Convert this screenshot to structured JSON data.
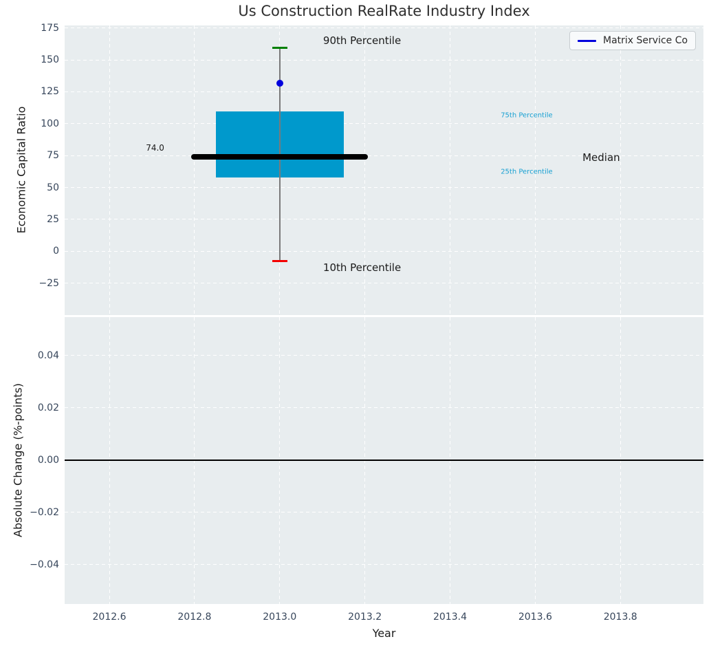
{
  "figure": {
    "title": "Us Construction RealRate Industry Index",
    "legend": {
      "label": "Matrix Service Co",
      "line_color": "#0101dd"
    }
  },
  "style": {
    "axes_background": "#e8edef",
    "grid_color": "#ffffff",
    "tick_color": "#36455a"
  },
  "chart_data": [
    {
      "type": "boxplot",
      "title": "Us Construction RealRate Industry Index",
      "ylabel": "Economic Capital Ratio",
      "xlim": [
        2012.495,
        2013.995
      ],
      "ylim": [
        -50,
        177
      ],
      "grid": true,
      "legend_position": "upper right",
      "x": 2013.0,
      "box_halfwidth": 0.15,
      "median_halfwidth": 0.2075,
      "cap_halfwidth": 0.018,
      "stats": {
        "p10": -7.6,
        "p25": 57.8,
        "median": 74.0,
        "p75": 109.6,
        "p90": 159.4
      },
      "company": {
        "name": "Matrix Service Co",
        "value": 131.6
      },
      "median_value_label": "74.0",
      "yticks": [
        {
          "v": 175,
          "label": "175"
        },
        {
          "v": 150,
          "label": "150"
        },
        {
          "v": 125,
          "label": "125"
        },
        {
          "v": 100,
          "label": "100"
        },
        {
          "v": 75,
          "label": "75"
        },
        {
          "v": 50,
          "label": "50"
        },
        {
          "v": 25,
          "label": "25"
        },
        {
          "v": 0,
          "label": "0"
        },
        {
          "v": -25,
          "label": "−25"
        }
      ],
      "annotations": [
        {
          "text": "90th Percentile",
          "x": 2013.102,
          "y": 165.0,
          "align": "left",
          "size": 15,
          "color": "#1a1a1a"
        },
        {
          "text": "10th Percentile",
          "x": 2013.102,
          "y": -12.8,
          "align": "left",
          "size": 15,
          "color": "#1a1a1a"
        },
        {
          "text": "75th Percentile",
          "x": 2013.519,
          "y": 106.1,
          "align": "left",
          "size": 10,
          "color": "#18a0d2"
        },
        {
          "text": "25th Percentile",
          "x": 2013.519,
          "y": 61.9,
          "align": "left",
          "size": 10,
          "color": "#18a0d2"
        },
        {
          "text": "Median",
          "x": 2013.711,
          "y": 73.6,
          "align": "left",
          "size": 15,
          "color": "#1a1a1a"
        },
        {
          "text": "74.0",
          "x": 2012.729,
          "y": 81.0,
          "align": "right",
          "size": 12,
          "color": "#1a1a1a"
        }
      ],
      "colors": {
        "box": "#0099cc",
        "median": "#000000",
        "whisker": "#7a7a7a",
        "p90_cap": "#008000",
        "p10_cap": "#f40000",
        "company_marker": "#0101dd",
        "percentile_label": "#18a0d2"
      }
    },
    {
      "type": "line",
      "ylabel": "Absolute Change (%-points)",
      "xlabel": "Year",
      "xlim": [
        2012.495,
        2013.995
      ],
      "ylim": [
        -0.055,
        0.0547
      ],
      "grid": true,
      "zero_line": 0.0,
      "zero_line_color": "#000000",
      "series": [],
      "yticks": [
        {
          "v": 0.04,
          "label": "0.04"
        },
        {
          "v": 0.02,
          "label": "0.02"
        },
        {
          "v": 0.0,
          "label": "0.00"
        },
        {
          "v": -0.02,
          "label": "−0.02"
        },
        {
          "v": -0.04,
          "label": "−0.04"
        }
      ],
      "xticks": [
        {
          "v": 2012.6,
          "label": "2012.6"
        },
        {
          "v": 2012.8,
          "label": "2012.8"
        },
        {
          "v": 2013.0,
          "label": "2013.0"
        },
        {
          "v": 2013.2,
          "label": "2013.2"
        },
        {
          "v": 2013.4,
          "label": "2013.4"
        },
        {
          "v": 2013.6,
          "label": "2013.6"
        },
        {
          "v": 2013.8,
          "label": "2013.8"
        }
      ]
    }
  ]
}
